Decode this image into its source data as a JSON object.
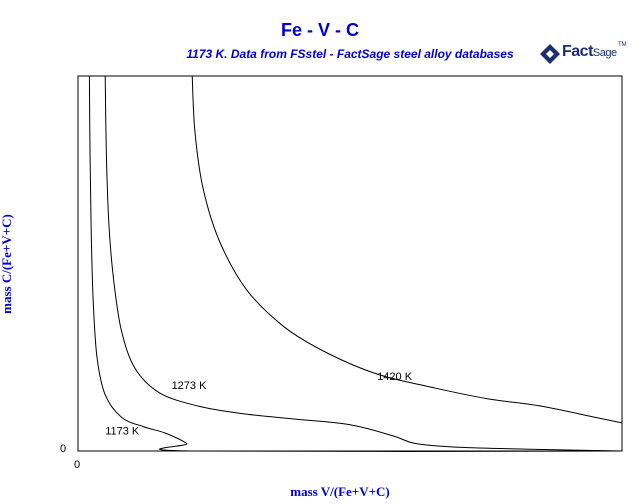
{
  "chart_data": {
    "type": "line",
    "title": "Fe - V - C",
    "subtitle": "1173 K.  Data from FSstel - FactSage steel alloy databases",
    "xlabel": "mass V/(Fe+V+C)",
    "ylabel": "mass C/(Fe+V+C)",
    "xlim": [
      0,
      1
    ],
    "ylim": [
      0,
      1
    ],
    "x_tick_labels": [
      "0"
    ],
    "y_tick_labels": [
      "0"
    ],
    "grid": false,
    "series": [
      {
        "name": "1173 K",
        "x": [
          0.021,
          0.022,
          0.024,
          0.028,
          0.035,
          0.05,
          0.08,
          0.12,
          0.16,
          0.2,
          0.21,
          1.0
        ],
        "y": [
          1.0,
          0.8,
          0.6,
          0.4,
          0.25,
          0.15,
          0.09,
          0.065,
          0.048,
          0.02,
          0.0,
          0.0
        ]
      },
      {
        "name": "1273 K",
        "x": [
          0.05,
          0.052,
          0.057,
          0.066,
          0.08,
          0.105,
          0.15,
          0.22,
          0.3,
          0.4,
          0.5,
          0.58,
          0.62,
          0.7,
          0.82,
          1.0
        ],
        "y": [
          1.0,
          0.8,
          0.6,
          0.45,
          0.32,
          0.22,
          0.155,
          0.12,
          0.1,
          0.085,
          0.07,
          0.04,
          0.02,
          0.01,
          0.005,
          0.0
        ]
      },
      {
        "name": "1420 K",
        "x": [
          0.21,
          0.215,
          0.23,
          0.26,
          0.31,
          0.38,
          0.46,
          0.55,
          0.65,
          0.75,
          0.85,
          0.95,
          1.0
        ],
        "y": [
          1.0,
          0.85,
          0.7,
          0.56,
          0.43,
          0.33,
          0.26,
          0.205,
          0.17,
          0.14,
          0.12,
          0.09,
          0.075
        ]
      }
    ],
    "curve_labels": [
      {
        "text": "1173 K",
        "x": 0.05,
        "y": 0.044
      },
      {
        "text": "1273 K",
        "x": 0.172,
        "y": 0.166
      },
      {
        "text": "1420 K",
        "x": 0.55,
        "y": 0.19
      }
    ]
  },
  "logo": {
    "fact": "Fact",
    "sage": "Sage",
    "tm": "TM"
  },
  "colors": {
    "title": "#0000cc",
    "curves": "#000000",
    "logo": "#1a2f6e"
  }
}
